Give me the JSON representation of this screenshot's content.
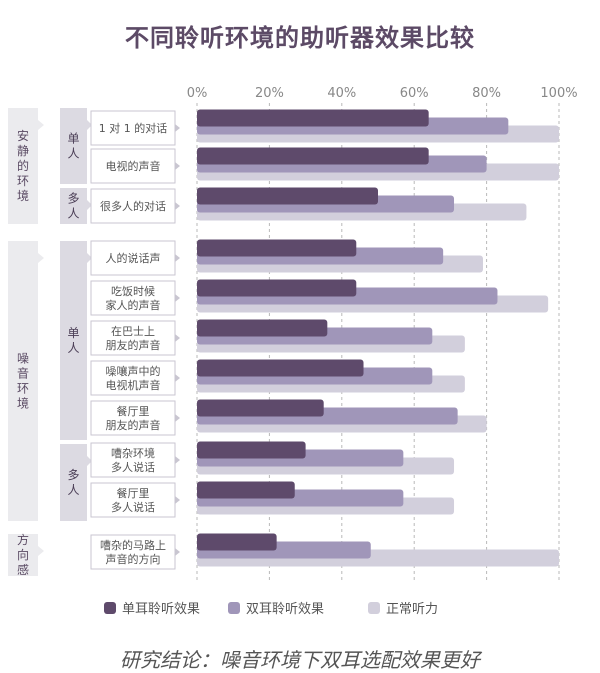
{
  "title": "不同聆听环境的助听器效果比较",
  "conclusion": "研究结论：噪音环境下双耳选配效果更好",
  "colors": {
    "mono": "#5e4a6b",
    "bin": "#a096b9",
    "normal": "#d2cfdc",
    "label_box_bg": "#dcdae2",
    "env_box_bg": "#ebebee"
  },
  "chart_data": {
    "type": "bar",
    "orientation": "horizontal",
    "title": "不同聆听环境的助听器效果比较",
    "xlim": [
      0,
      100
    ],
    "x_ticks": [
      "0%",
      "20%",
      "40%",
      "60%",
      "80%",
      "100%"
    ],
    "grid": true,
    "legend_position": "bottom",
    "categories": [
      "1 对 1 的对话",
      "电视的声音",
      "很多人的对话",
      "人的说话声",
      "吃饭时候\n家人的声音",
      "在巴士上\n朋友的声音",
      "噪嚷声中的\n电视机声音",
      "餐厅里\n朋友的声音",
      "嘈杂环境\n多人说话",
      "餐厅里\n多人说话",
      "嘈杂的马路上\n声音的方向"
    ],
    "series": [
      {
        "name": "单耳聆听效果",
        "color": "#5e4a6b",
        "values": [
          64,
          64,
          50,
          44,
          44,
          36,
          46,
          35,
          30,
          27,
          22
        ]
      },
      {
        "name": "双耳聆听效果",
        "color": "#a096b9",
        "values": [
          86,
          80,
          71,
          68,
          83,
          65,
          65,
          72,
          57,
          57,
          48
        ]
      },
      {
        "name": "正常听力",
        "color": "#d2cfdc",
        "values": [
          100,
          100,
          91,
          79,
          97,
          74,
          74,
          80,
          71,
          71,
          100
        ]
      }
    ],
    "groups": [
      {
        "label": "安静的环境",
        "subgroups": [
          {
            "label": "单人",
            "rows": [
              0,
              1
            ]
          },
          {
            "label": "多人",
            "rows": [
              2
            ]
          }
        ]
      },
      {
        "label": "噪音环境",
        "subgroups": [
          {
            "label": "单人",
            "rows": [
              3,
              4,
              5,
              6,
              7
            ]
          },
          {
            "label": "多人",
            "rows": [
              8,
              9
            ]
          }
        ]
      },
      {
        "label": "方向感",
        "subgroups": [
          {
            "label": "",
            "rows": [
              10
            ]
          }
        ]
      }
    ]
  }
}
